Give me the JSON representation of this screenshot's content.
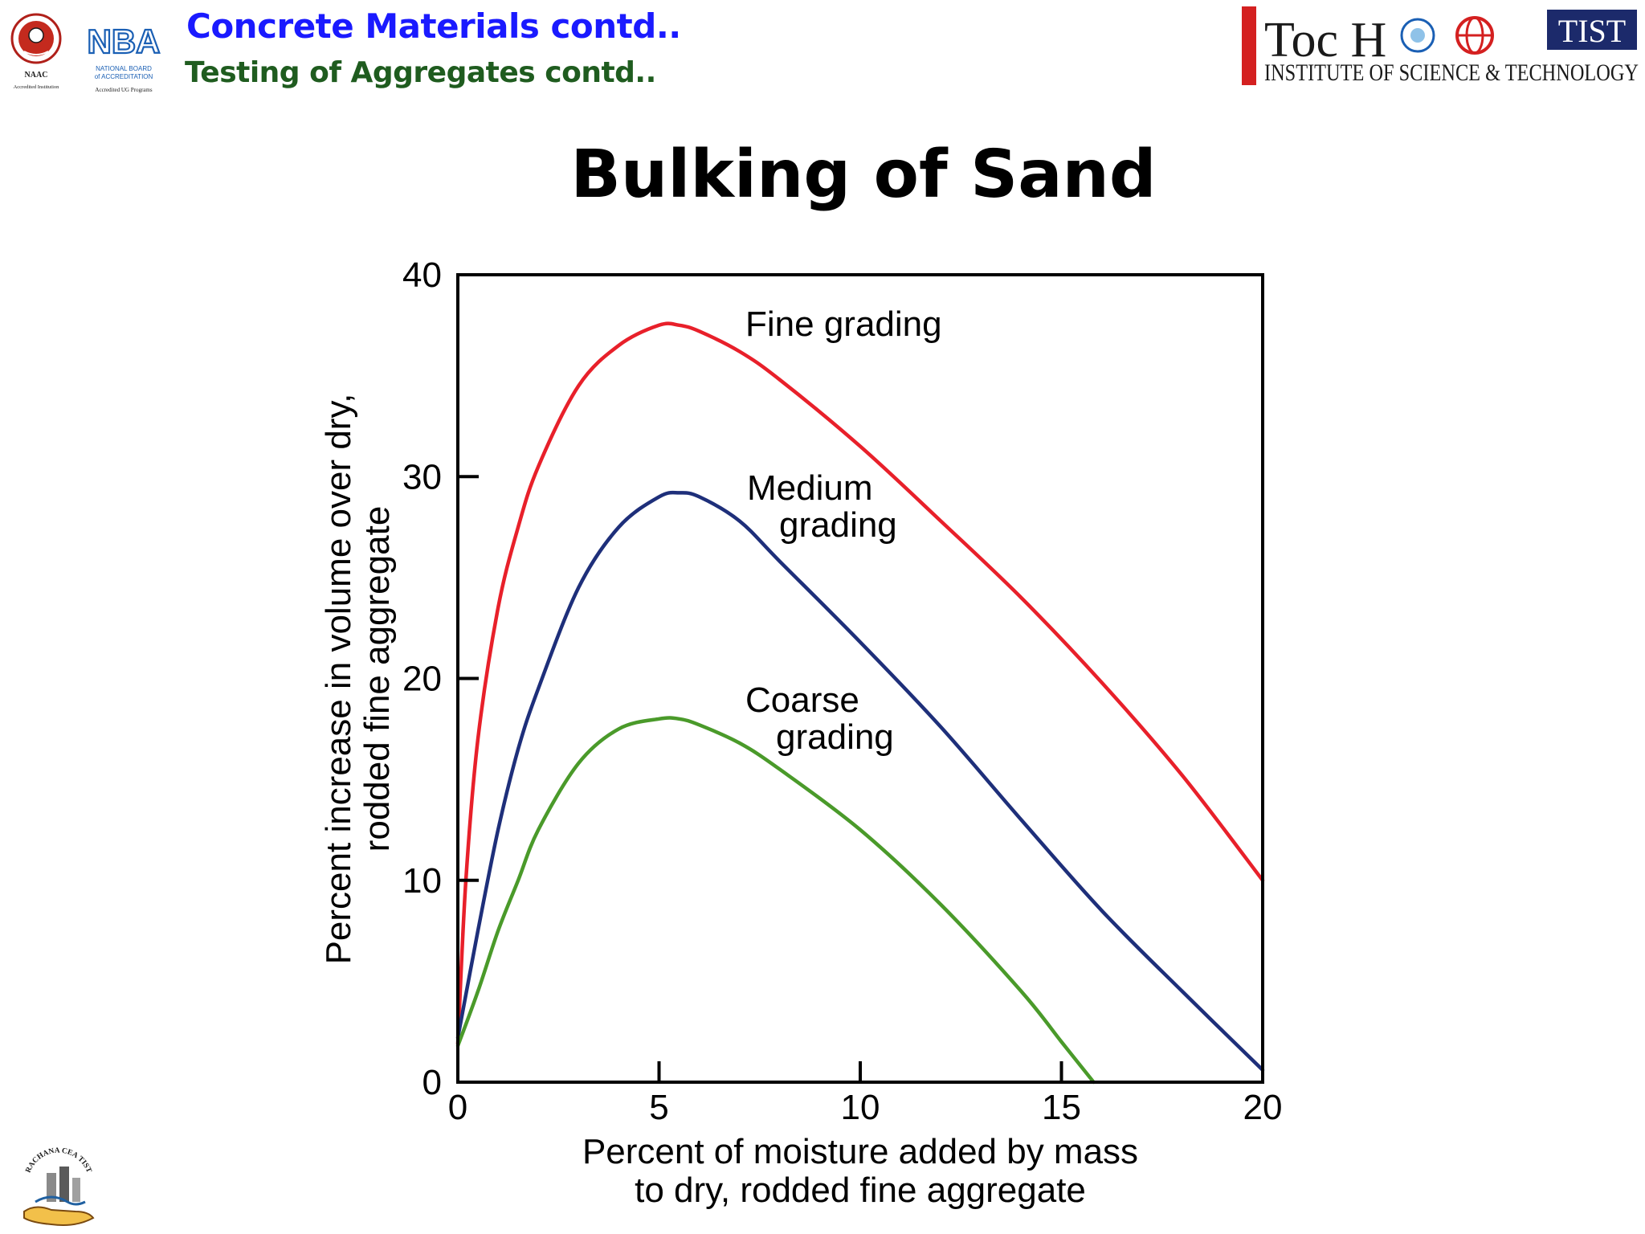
{
  "header": {
    "title": "Concrete Materials contd..",
    "subtitle": "Testing of Aggregates contd.."
  },
  "slide_title": "Bulking of Sand",
  "logos": {
    "naac": {
      "name": "NAAC",
      "caption": "Accredited Institution"
    },
    "nba": {
      "name": "NBA",
      "line1": "NATIONAL BOARD",
      "line2": "of ACCREDITATION",
      "caption": "Accredited UG Programs"
    },
    "toch": {
      "name": "Toc H",
      "badge": "TIST",
      "subtitle": "INSTITUTE OF SCIENCE & TECHNOLOGY"
    },
    "rachana": {
      "name": "RACHANA CEA TIST"
    }
  },
  "colors": {
    "header_title": "#1a1aff",
    "header_subtitle": "#1f5c1f",
    "fine": "#e8202a",
    "medium": "#1e2f7a",
    "coarse": "#4a9a2a",
    "toch_red": "#d42020",
    "tist_navy": "#1c2a6b"
  },
  "chart_data": {
    "type": "line",
    "xlabel": [
      "Percent of moisture added by mass",
      "to dry, rodded fine aggregate"
    ],
    "ylabel": [
      "Percent increase in volume over dry,",
      "rodded fine aggregate"
    ],
    "xlim": [
      0,
      20
    ],
    "ylim": [
      0,
      40
    ],
    "xticks": [
      0,
      5,
      10,
      15,
      20
    ],
    "yticks": [
      0,
      10,
      20,
      30,
      40
    ],
    "grid": false,
    "series": [
      {
        "name": "Fine grading",
        "label": [
          "Fine grading"
        ],
        "color": "#e8202a",
        "points": [
          [
            0,
            1.9
          ],
          [
            0.2,
            10
          ],
          [
            0.5,
            17
          ],
          [
            1,
            23.5
          ],
          [
            1.5,
            27.5
          ],
          [
            2,
            30.5
          ],
          [
            3,
            34.5
          ],
          [
            4,
            36.5
          ],
          [
            5,
            37.5
          ],
          [
            5.5,
            37.5
          ],
          [
            6,
            37.2
          ],
          [
            7,
            36.2
          ],
          [
            8,
            34.8
          ],
          [
            10,
            31.5
          ],
          [
            12,
            27.8
          ],
          [
            14,
            24
          ],
          [
            16,
            19.8
          ],
          [
            18,
            15.2
          ],
          [
            20,
            10
          ]
        ]
      },
      {
        "name": "Medium grading",
        "label": [
          "Medium",
          "grading"
        ],
        "color": "#1e2f7a",
        "points": [
          [
            0,
            2.2
          ],
          [
            0.5,
            7.5
          ],
          [
            1,
            12.5
          ],
          [
            1.5,
            16.5
          ],
          [
            2,
            19.5
          ],
          [
            3,
            24.5
          ],
          [
            4,
            27.5
          ],
          [
            5,
            29
          ],
          [
            5.5,
            29.2
          ],
          [
            6,
            29
          ],
          [
            7,
            27.8
          ],
          [
            8,
            25.8
          ],
          [
            10,
            21.8
          ],
          [
            12,
            17.6
          ],
          [
            14,
            13
          ],
          [
            16,
            8.5
          ],
          [
            18,
            4.5
          ],
          [
            20,
            0.6
          ]
        ]
      },
      {
        "name": "Coarse grading",
        "label": [
          "Coarse",
          "grading"
        ],
        "color": "#4a9a2a",
        "points": [
          [
            0,
            1.8
          ],
          [
            0.5,
            4.5
          ],
          [
            1,
            7.5
          ],
          [
            1.5,
            10
          ],
          [
            2,
            12.5
          ],
          [
            3,
            15.8
          ],
          [
            4,
            17.5
          ],
          [
            5,
            18
          ],
          [
            5.5,
            18
          ],
          [
            6,
            17.7
          ],
          [
            7,
            16.8
          ],
          [
            8,
            15.5
          ],
          [
            10,
            12.5
          ],
          [
            12,
            8.8
          ],
          [
            14,
            4.5
          ],
          [
            15,
            2
          ],
          [
            15.8,
            0
          ]
        ]
      }
    ]
  }
}
